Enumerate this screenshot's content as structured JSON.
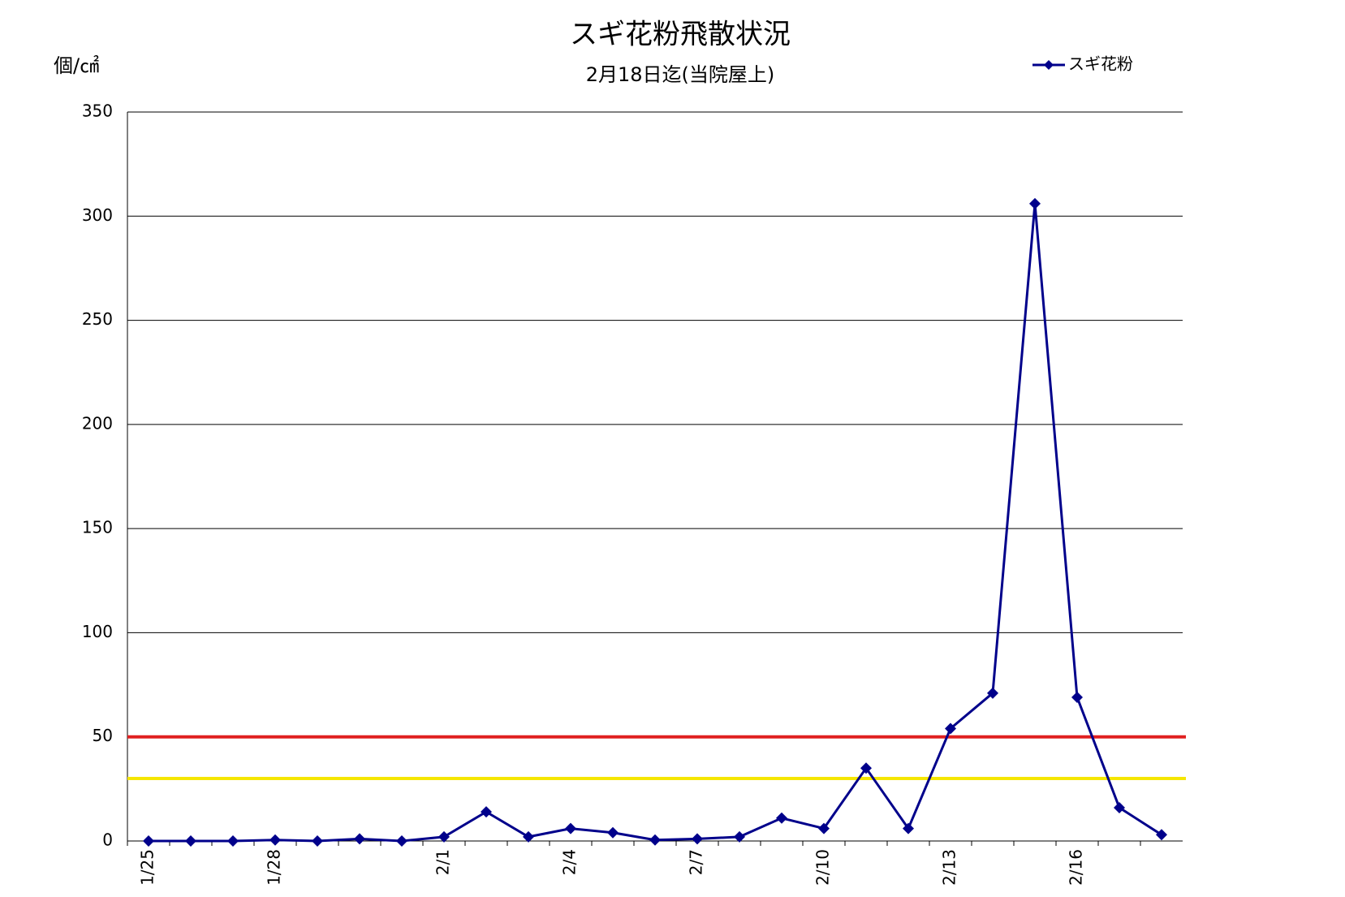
{
  "chart_data": {
    "type": "line",
    "title": "スギ花粉飛散状況",
    "subtitle": "2月18日迄(当院屋上)",
    "y_label": "個/㎠",
    "categories": [
      "1/25",
      null,
      null,
      "1/28",
      null,
      null,
      null,
      "2/1",
      null,
      null,
      "2/4",
      null,
      null,
      "2/7",
      null,
      null,
      "2/10",
      null,
      null,
      "2/13",
      null,
      null,
      "2/16",
      null,
      null
    ],
    "series": [
      {
        "name": "スギ花粉",
        "color": "#00008b",
        "values": [
          0,
          0,
          0,
          0.5,
          0,
          1,
          0,
          2,
          14,
          2,
          6,
          4,
          0.5,
          1,
          2,
          11,
          6,
          35,
          6,
          54,
          71,
          306,
          69,
          16,
          3
        ]
      }
    ],
    "reference_lines": [
      {
        "value": 50,
        "color": "#e02020"
      },
      {
        "value": 30,
        "color": "#f5e600"
      }
    ],
    "ylim": [
      0,
      350
    ],
    "yticks": [
      0,
      50,
      100,
      150,
      200,
      250,
      300,
      350
    ],
    "grid": true,
    "legend": "top-right"
  }
}
